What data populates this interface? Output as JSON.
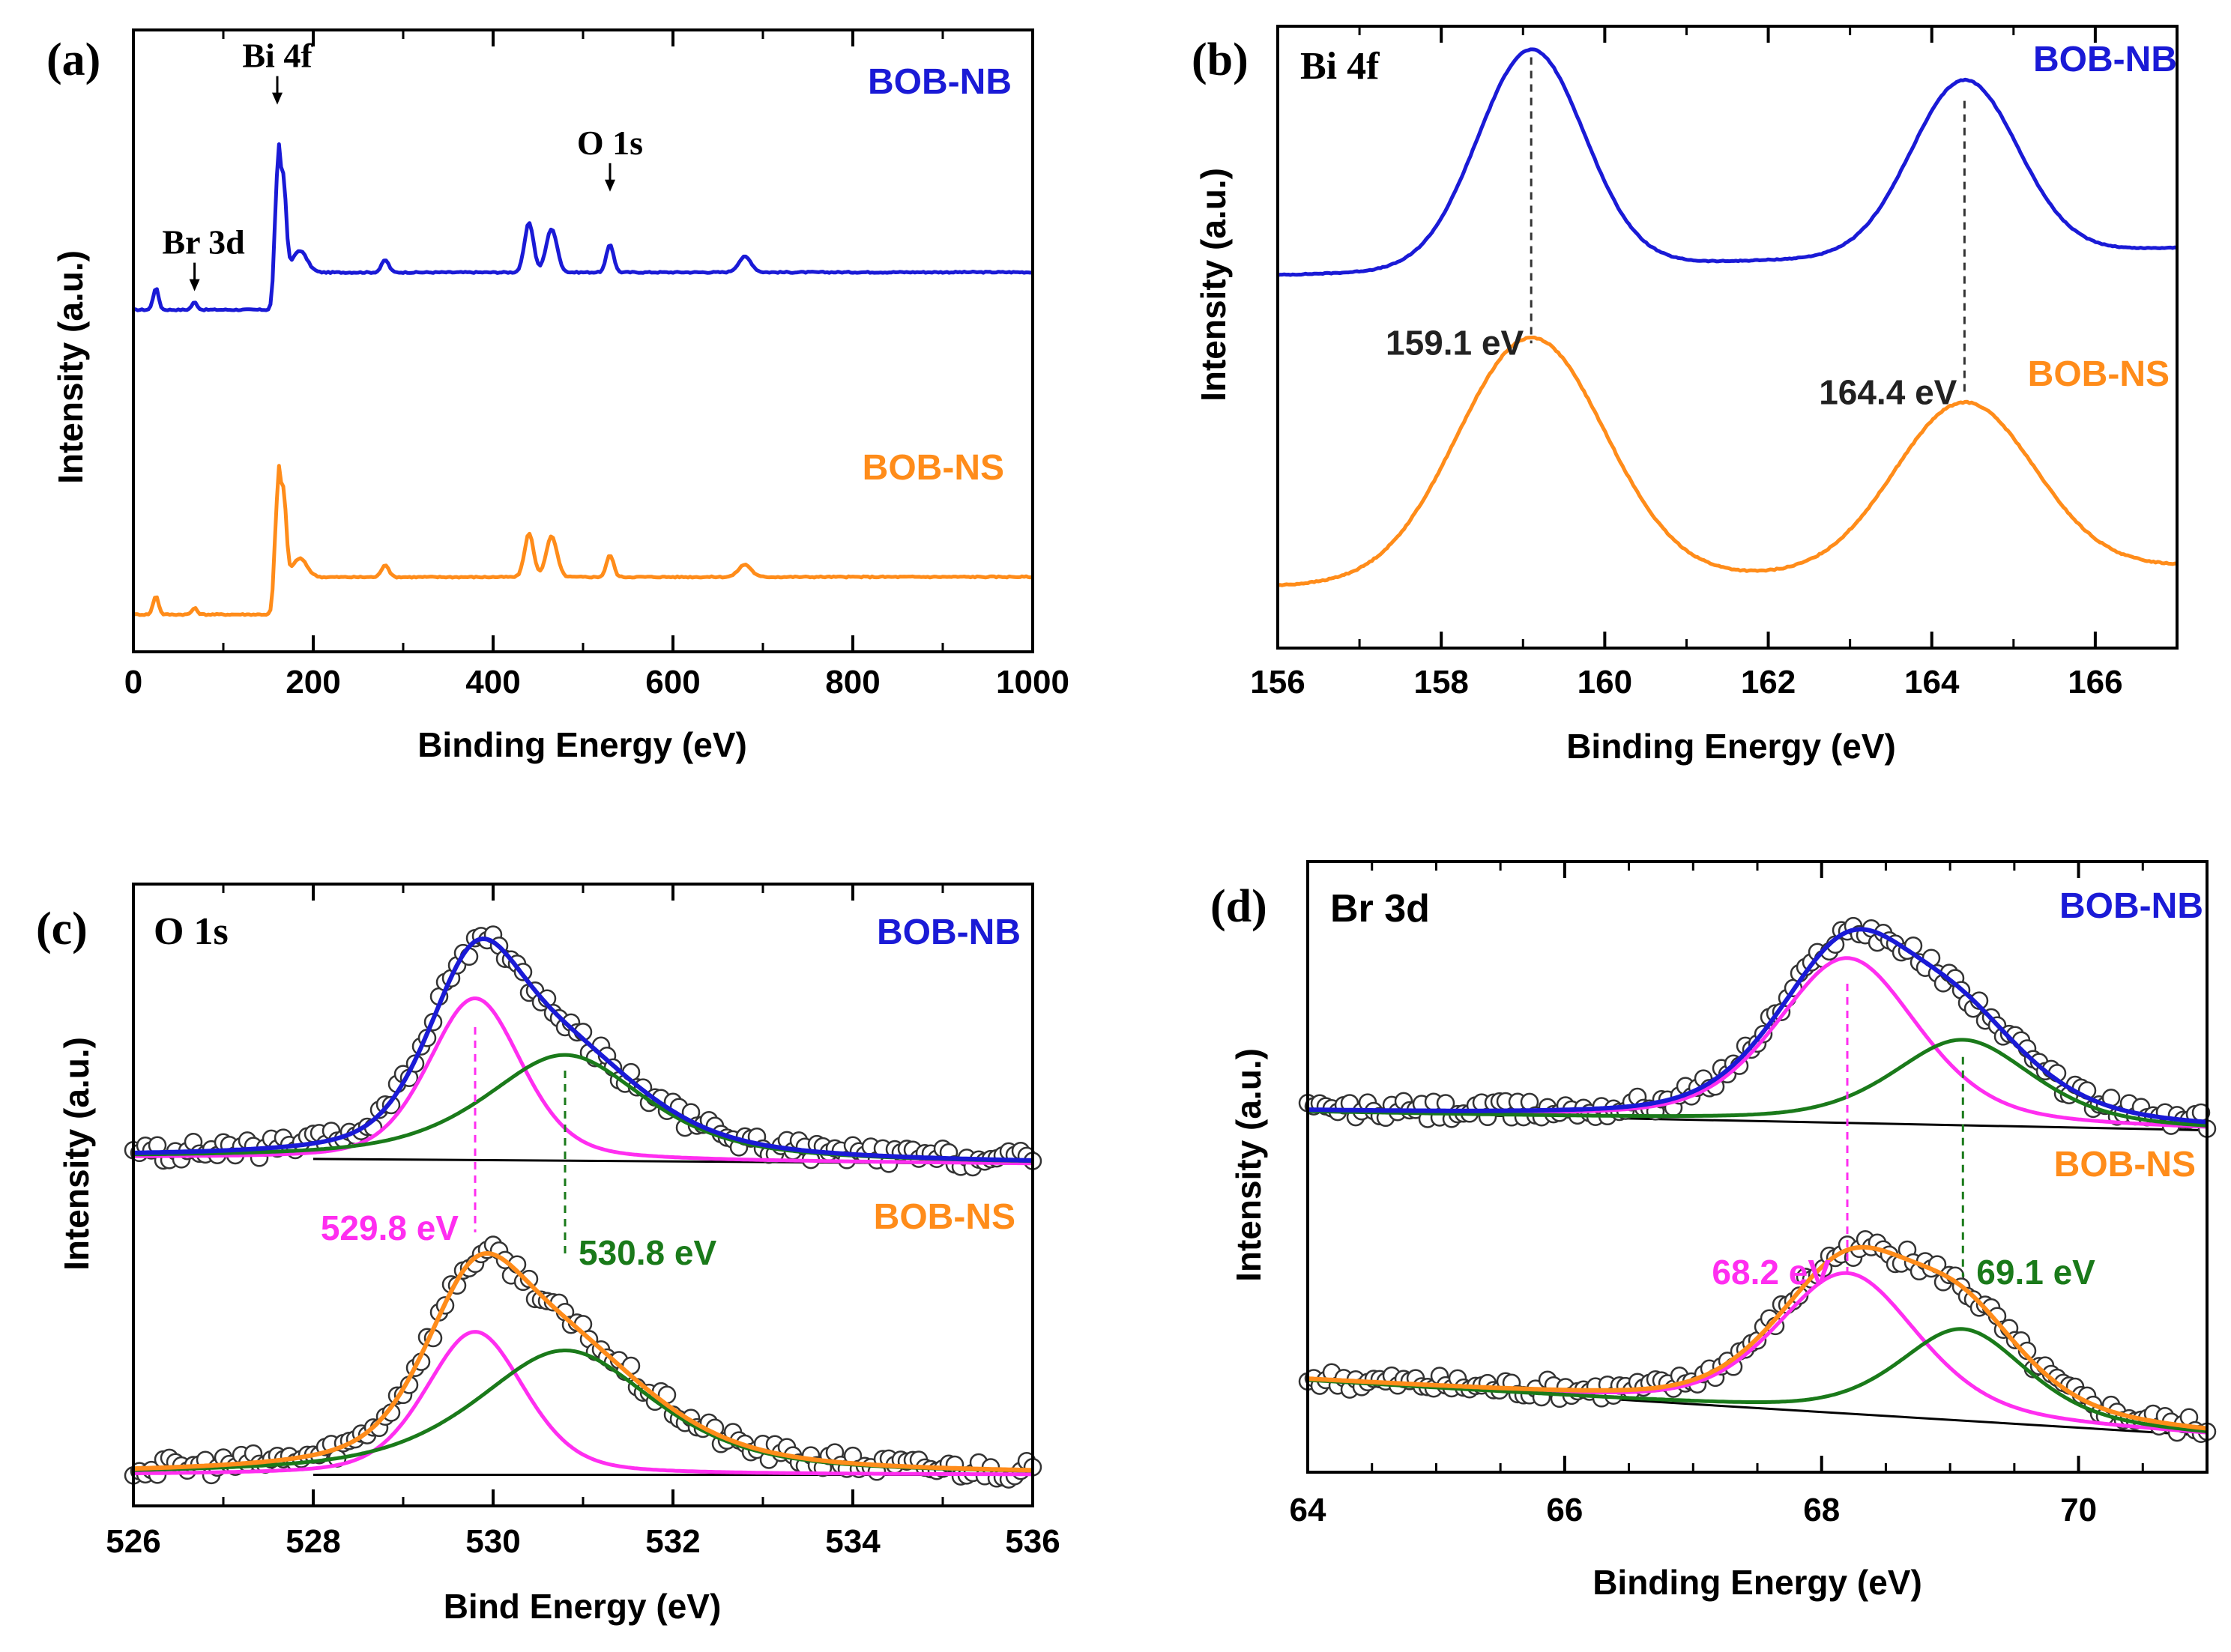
{
  "colors": {
    "nb": "#1a1ad6",
    "ns": "#ff8c1a",
    "fit_a": "#ff2ef0",
    "fit_b": "#1a7a1a",
    "baseline": "#000000",
    "points": "#333333"
  },
  "chart_data": [
    {
      "id": "a",
      "type": "line",
      "panel_label": "(a)",
      "xlabel": "Binding Energy (eV)",
      "ylabel": "Intensity (a.u.)",
      "xlim": [
        0,
        1000
      ],
      "ylim": [
        0,
        100
      ],
      "xticks": [
        0,
        200,
        400,
        600,
        800,
        1000
      ],
      "xtick_labels": [
        "0",
        "200",
        "400",
        "600",
        "800",
        "1000"
      ],
      "minor_step": 100,
      "legend_nb": "BOB-NB",
      "legend_ns": "BOB-NS",
      "annotations": [
        {
          "text": "Bi 4f",
          "x": 160,
          "y_top": 88,
          "arrow": true
        },
        {
          "text": "O 1s",
          "x": 530,
          "y_top": 74,
          "arrow": true
        },
        {
          "text": "Br 3d",
          "x": 68,
          "y_top": 58,
          "arrow": true
        }
      ],
      "series": [
        {
          "name": "BOB-NB",
          "baseline": 55,
          "slope": 0.005,
          "jump": 6,
          "jump_at": 160,
          "noise": 0.2,
          "peaks": [
            [
              25,
              3.5,
              3
            ],
            [
              68,
              1.2,
              3
            ],
            [
              160,
              21,
              3
            ],
            [
              167,
              14,
              3
            ],
            [
              185,
              3.5,
              8
            ],
            [
              280,
              2,
              4
            ],
            [
              440,
              8,
              5
            ],
            [
              465,
              7,
              6
            ],
            [
              530,
              4.5,
              4
            ],
            [
              680,
              2.5,
              7
            ]
          ]
        },
        {
          "name": "BOB-NS",
          "baseline": 6,
          "slope": 0.005,
          "jump": 6,
          "jump_at": 160,
          "noise": 0.2,
          "peaks": [
            [
              25,
              3,
              3
            ],
            [
              68,
              1,
              3
            ],
            [
              160,
              18,
              3
            ],
            [
              167,
              13,
              3
            ],
            [
              185,
              3,
              8
            ],
            [
              280,
              2,
              4
            ],
            [
              440,
              7,
              5
            ],
            [
              465,
              6.5,
              6
            ],
            [
              530,
              3.5,
              4
            ],
            [
              680,
              2,
              7
            ]
          ]
        }
      ]
    },
    {
      "id": "b",
      "type": "line",
      "panel_label": "(b)",
      "region_label": "Bi 4f",
      "xlabel": "Binding Energy (eV)",
      "ylabel": "Intensity (a.u.)",
      "xlim": [
        156,
        167
      ],
      "ylim": [
        0,
        100
      ],
      "xticks": [
        156,
        158,
        160,
        162,
        164,
        166
      ],
      "xtick_labels": [
        "156",
        "158",
        "160",
        "162",
        "164",
        "166"
      ],
      "minor_step": 1,
      "legend_nb": "BOB-NB",
      "legend_ns": "BOB-NS",
      "peak_lines": [
        {
          "x": 159.1,
          "label": "159.1 eV",
          "y_top": 95,
          "y_bottom": 49
        },
        {
          "x": 164.4,
          "label": "164.4 eV",
          "y_top": 88,
          "y_bottom": 41
        }
      ],
      "series": [
        {
          "name": "BOB-NB",
          "baseline": 60,
          "slope": 0.4,
          "noise": 0.15,
          "peaks": [
            [
              159.1,
              35,
              0.65
            ],
            [
              164.4,
              28,
              0.65
            ]
          ]
        },
        {
          "name": "BOB-NS",
          "baseline": 10,
          "slope": 0.3,
          "noise": 0.2,
          "peaks": [
            [
              159.1,
              39,
              0.9
            ],
            [
              164.4,
              27,
              0.85
            ]
          ]
        }
      ]
    },
    {
      "id": "c",
      "type": "line",
      "panel_label": "(c)",
      "region_label": "O 1s",
      "xlabel": "Bind Energy (eV)",
      "ylabel": "Intensity (a.u.)",
      "xlim": [
        526,
        536
      ],
      "ylim": [
        0,
        100
      ],
      "xticks": [
        526,
        528,
        530,
        532,
        534,
        536
      ],
      "xtick_labels": [
        "526",
        "528",
        "530",
        "532",
        "534",
        "536"
      ],
      "minor_step": 1,
      "legend_nb": "BOB-NB",
      "legend_ns": "BOB-NS",
      "peak_lines": [
        {
          "x": 529.8,
          "label": "529.8 eV",
          "color_key": "fit_a",
          "y_top": 77,
          "y_bottom": 44
        },
        {
          "x": 530.8,
          "label": "530.8 eV",
          "color_key": "fit_b",
          "y_top": 70,
          "y_bottom": 40
        }
      ],
      "series": [
        {
          "name": "BOB-NB",
          "bg_start": 56,
          "bg_end": 55,
          "components": [
            [
              529.8,
              26,
              0.52,
              0.65
            ],
            [
              530.8,
              17,
              0.9,
              0.35
            ]
          ]
        },
        {
          "name": "BOB-NS",
          "bg_start": 5,
          "bg_end": 5,
          "components": [
            [
              529.8,
              23,
              0.55,
              0.65
            ],
            [
              530.8,
              20,
              1.0,
              0.35
            ]
          ]
        }
      ]
    },
    {
      "id": "d",
      "type": "line",
      "panel_label": "(d)",
      "region_label": "Br 3d",
      "xlabel": "Binding Energy (eV)",
      "ylabel": "Intensity (a.u.)",
      "xlim": [
        64,
        71
      ],
      "ylim": [
        0,
        100
      ],
      "xticks": [
        64,
        66,
        68,
        70
      ],
      "xtick_labels": [
        "64",
        "66",
        "68",
        "70"
      ],
      "minor_step": 0.5,
      "legend_nb": "BOB-NB",
      "legend_ns": "BOB-NS",
      "peak_lines": [
        {
          "x": 68.2,
          "label": "68.2 eV",
          "color_key": "fit_a",
          "y_top": 80,
          "y_bottom": 32
        },
        {
          "x": 69.1,
          "label": "69.1 eV",
          "color_key": "fit_b",
          "y_top": 68,
          "y_bottom": 32
        }
      ],
      "series": [
        {
          "name": "BOB-NB",
          "bg_start": 59,
          "bg_end": 56,
          "components": [
            [
              68.2,
              27,
              0.55,
              0.6
            ],
            [
              69.1,
              14,
              0.55,
              0.5
            ]
          ]
        },
        {
          "name": "BOB-NS",
          "bg_start": 15,
          "bg_end": 6,
          "components": [
            [
              68.2,
              23,
              0.55,
              0.6
            ],
            [
              69.1,
              15,
              0.5,
              0.5
            ]
          ]
        }
      ]
    }
  ]
}
